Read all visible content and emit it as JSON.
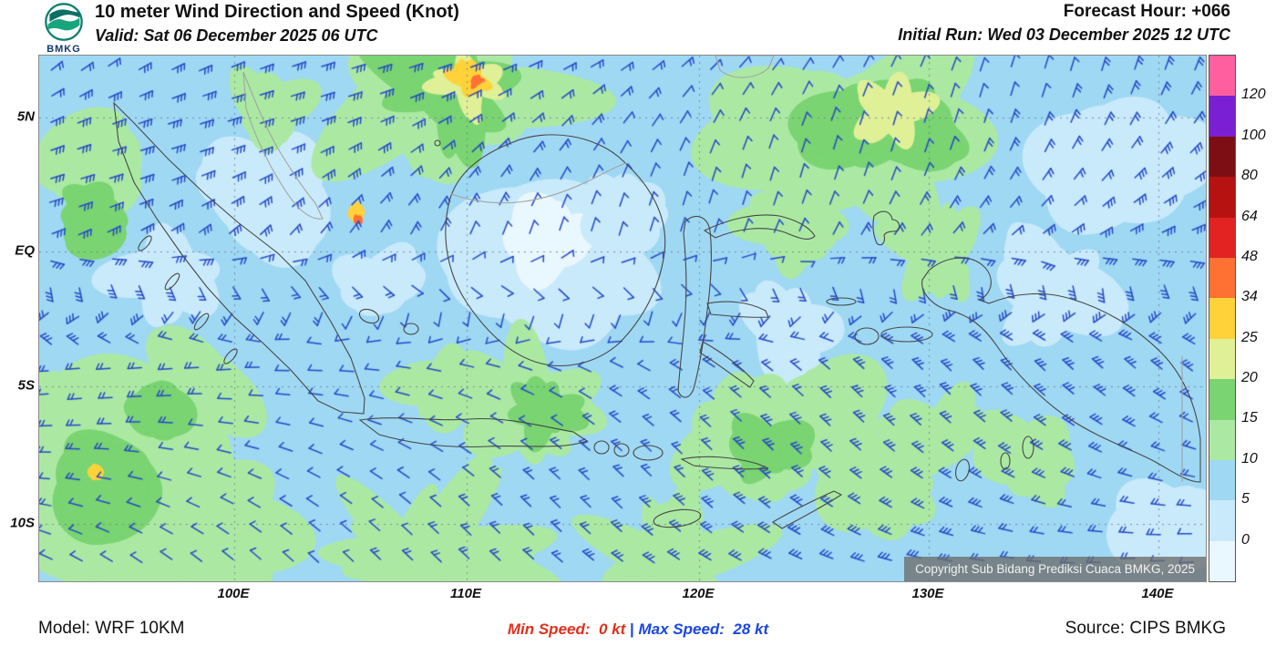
{
  "header": {
    "logo_label": "BMKG",
    "title": "10 meter Wind Direction and Speed (Knot)",
    "valid_line": "Valid: Sat 06 December 2025 06 UTC",
    "forecast_hour": "Forecast Hour: +066",
    "initial_run": "Initial Run: Wed 03 December 2025 12 UTC"
  },
  "map": {
    "lat_ticks": [
      "5N",
      "EQ",
      "5S",
      "10S"
    ],
    "lon_ticks": [
      "100E",
      "110E",
      "120E",
      "130E",
      "140E"
    ],
    "copyright": "Copyright Sub Bidang Prediksi Cuaca BMKG, 2025",
    "barb_color": "#2448c8",
    "sea_base_speed_band": "5-10 kt"
  },
  "colorbar": {
    "boundary_labels": [
      "120",
      "100",
      "80",
      "64",
      "48",
      "34",
      "25",
      "20",
      "15",
      "10",
      "5",
      "0"
    ],
    "segment_colors_top_to_bottom": [
      "#ff5f9e",
      "#7b1fd4",
      "#7d0f14",
      "#b61212",
      "#e32222",
      "#ff7033",
      "#ffd23a",
      "#dff096",
      "#79d471",
      "#abe9a3",
      "#9fd8f3",
      "#c9eafa",
      "#e9f7fe"
    ]
  },
  "footer": {
    "model": "Model: WRF 10KM",
    "min_speed": "Min Speed:  0 kt",
    "separator": " | ",
    "max_speed": "Max Speed:  28 kt",
    "source": "Source: CIPS BMKG"
  }
}
